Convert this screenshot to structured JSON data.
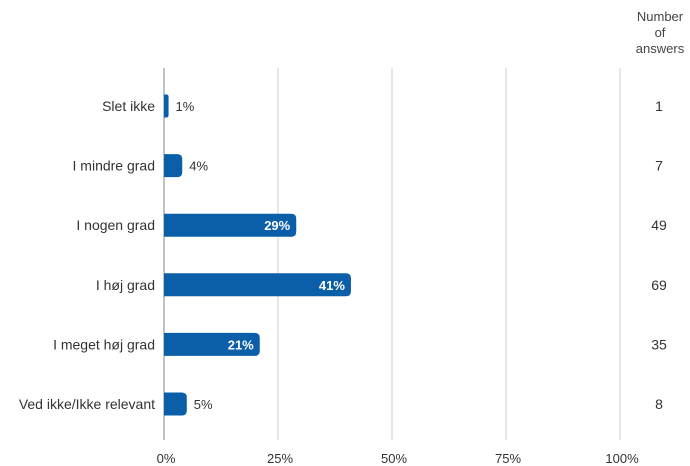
{
  "answers_header": [
    "Number",
    "of",
    "answers"
  ],
  "chart_data": {
    "type": "bar",
    "orientation": "horizontal",
    "categories": [
      "Slet ikke",
      "I mindre grad",
      "I nogen grad",
      "I høj grad",
      "I meget høj grad",
      "Ved ikke/Ikke relevant"
    ],
    "values": [
      1,
      4,
      29,
      41,
      21,
      5
    ],
    "value_labels": [
      "1%",
      "4%",
      "29%",
      "41%",
      "21%",
      "5%"
    ],
    "answers": [
      1,
      7,
      49,
      69,
      35,
      8
    ],
    "xlim": [
      0,
      100
    ],
    "x_ticks": [
      0,
      25,
      50,
      75,
      100
    ],
    "x_tick_labels": [
      "0%",
      "25%",
      "50%",
      "75%",
      "100%"
    ],
    "grid": true,
    "colors": {
      "bar": "#0b5ea8",
      "grid": "#cfcfcf",
      "text": "#333333",
      "label_inside": "#ffffff"
    }
  }
}
